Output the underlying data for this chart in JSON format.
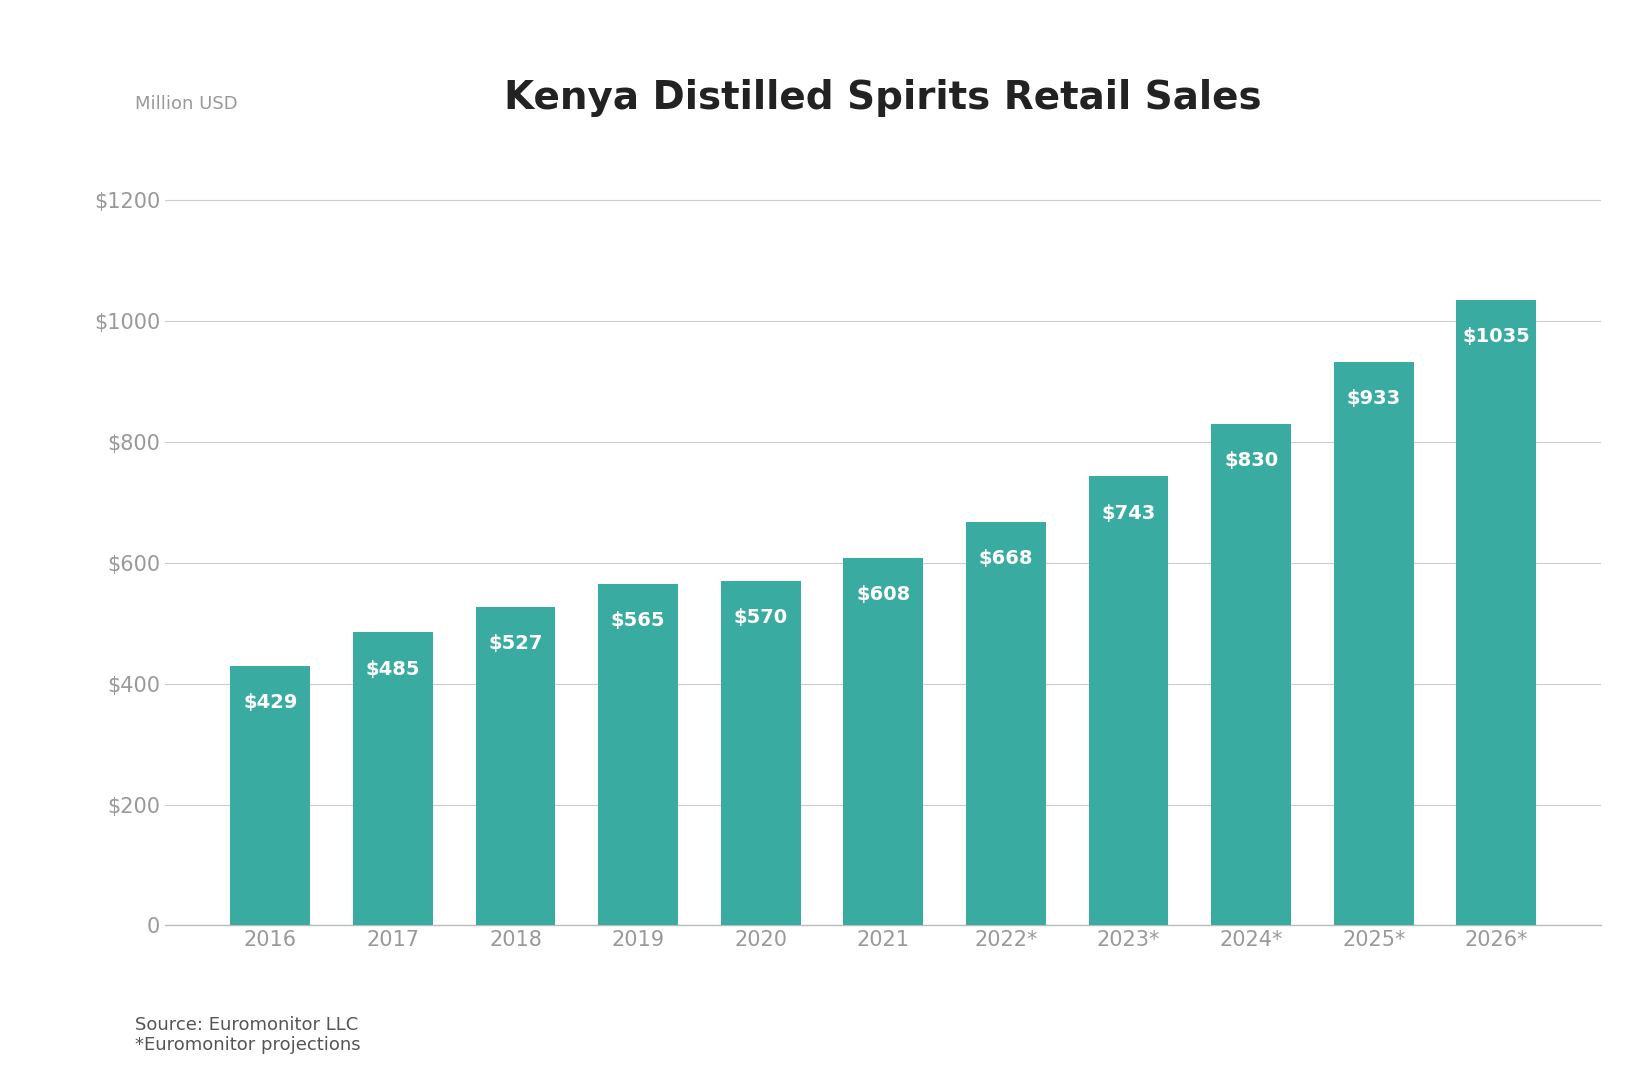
{
  "title": "Kenya Distilled Spirits Retail Sales",
  "ylabel": "Million USD",
  "categories": [
    "2016",
    "2017",
    "2018",
    "2019",
    "2020",
    "2021",
    "2022*",
    "2023*",
    "2024*",
    "2025*",
    "2026*"
  ],
  "values": [
    429,
    485,
    527,
    565,
    570,
    608,
    668,
    743,
    830,
    933,
    1035
  ],
  "bar_color": "#3aaba0",
  "label_color": "#ffffff",
  "background_color": "#ffffff",
  "ylim": [
    0,
    1300
  ],
  "yticks": [
    0,
    200,
    400,
    600,
    800,
    1000,
    1200
  ],
  "ytick_labels": [
    "0",
    "$200",
    "$400",
    "$600",
    "$800",
    "$1000",
    "$1200"
  ],
  "title_fontsize": 28,
  "label_fontsize": 14,
  "axis_fontsize": 15,
  "ylabel_fontsize": 13,
  "bar_width": 0.65,
  "source_text": "Source: Euromonitor LLC\n*Euromonitor projections",
  "source_fontsize": 13,
  "grid_color": "#cccccc",
  "tick_color": "#999999",
  "title_color": "#222222",
  "source_color": "#555555"
}
